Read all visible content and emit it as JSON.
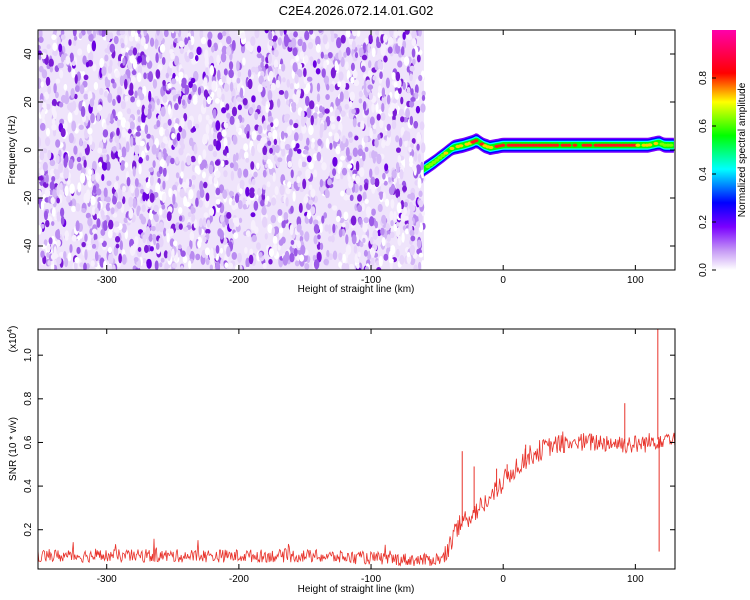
{
  "figure_title": "C2E4.2026.072.14.01.G02",
  "chart_data": [
    {
      "type": "heatmap",
      "title": "C2E4.2026.072.14.01.G02",
      "xlabel": "Height of straight line (km)",
      "ylabel": "Frequency (Hz)",
      "xlim": [
        -352,
        130
      ],
      "ylim": [
        -50,
        50
      ],
      "xticks": [
        -300,
        -200,
        -100,
        0,
        100
      ],
      "yticks": [
        -40,
        -20,
        0,
        20,
        40
      ],
      "xtick_labels": [
        "-300",
        "-200",
        "-100",
        "0",
        "100"
      ],
      "ytick_labels": [
        "-40",
        "-20",
        "0",
        "20",
        "40"
      ],
      "data_extent_x": [
        -352,
        -60
      ],
      "noise_region": {
        "x_range": [
          -352,
          -60
        ],
        "y_range": [
          -50,
          50
        ],
        "typical_amplitude": 0.15,
        "color": "#7a1bd6"
      },
      "signal_band": {
        "x": [
          -60,
          -52,
          -45,
          -38,
          -30,
          -24,
          -20,
          -15,
          -10,
          -5,
          0,
          20,
          50,
          80,
          100,
          110,
          118,
          122,
          130
        ],
        "center_freq": [
          -8,
          -5,
          -2,
          1,
          2,
          3,
          4,
          2,
          1,
          1.5,
          2,
          2,
          2,
          2,
          2,
          2,
          3,
          2,
          2
        ],
        "peak_amplitude": [
          0.45,
          0.55,
          0.7,
          0.75,
          0.8,
          0.85,
          0.9,
          0.85,
          0.8,
          0.85,
          0.9,
          0.95,
          0.95,
          0.9,
          0.85,
          0.75,
          0.7,
          0.6,
          0.55
        ]
      },
      "colorbar": {
        "label": "Normalized spectral amplitude",
        "range": [
          0,
          1
        ],
        "ticks": [
          0.0,
          0.2,
          0.4,
          0.6,
          0.8
        ],
        "tick_labels": [
          "0.0",
          "0.2",
          "0.4",
          "0.6",
          "0.8"
        ],
        "colors": [
          "#ffffff",
          "#7a00ff",
          "#0000ff",
          "#00ffff",
          "#00ff00",
          "#ffff00",
          "#ff0000",
          "#ff00aa"
        ]
      },
      "grid": false
    },
    {
      "type": "line",
      "xlabel": "Height of straight line (km)",
      "ylabel": "SNR (10 * v/v)",
      "y_multiplier_label": "(x10",
      "y_multiplier_exp": "4",
      "y_multiplier_close": ")",
      "xlim": [
        -352,
        130
      ],
      "ylim": [
        0.02,
        1.12
      ],
      "xticks": [
        -300,
        -200,
        -100,
        0,
        100
      ],
      "yticks": [
        0.2,
        0.4,
        0.6,
        0.8,
        1.0
      ],
      "xtick_labels": [
        "-300",
        "-200",
        "-100",
        "0",
        "100"
      ],
      "ytick_labels": [
        "0.2",
        "0.4",
        "0.6",
        "0.8",
        "1.0"
      ],
      "series": [
        {
          "color": "#e8322a",
          "x": [
            -352,
            -300,
            -250,
            -200,
            -150,
            -100,
            -60,
            -45,
            -40,
            -35,
            -30,
            -20,
            -10,
            0,
            10,
            20,
            30,
            40,
            60,
            80,
            100,
            110,
            115,
            120,
            130
          ],
          "y": [
            0.08,
            0.08,
            0.08,
            0.08,
            0.08,
            0.07,
            0.06,
            0.07,
            0.13,
            0.2,
            0.24,
            0.29,
            0.34,
            0.42,
            0.49,
            0.54,
            0.57,
            0.59,
            0.6,
            0.6,
            0.59,
            0.6,
            0.61,
            0.62,
            0.63
          ],
          "spikes": [
            {
              "x": -31,
              "y": 0.56
            },
            {
              "x": -22,
              "y": 0.49
            },
            {
              "x": -5,
              "y": 0.48
            },
            {
              "x": 3,
              "y": 0.5
            },
            {
              "x": 17,
              "y": 0.59
            },
            {
              "x": 92,
              "y": 0.78
            },
            {
              "x": 117,
              "y": 1.12
            },
            {
              "x": 118,
              "y": 0.1
            }
          ]
        }
      ],
      "grid": false
    }
  ]
}
